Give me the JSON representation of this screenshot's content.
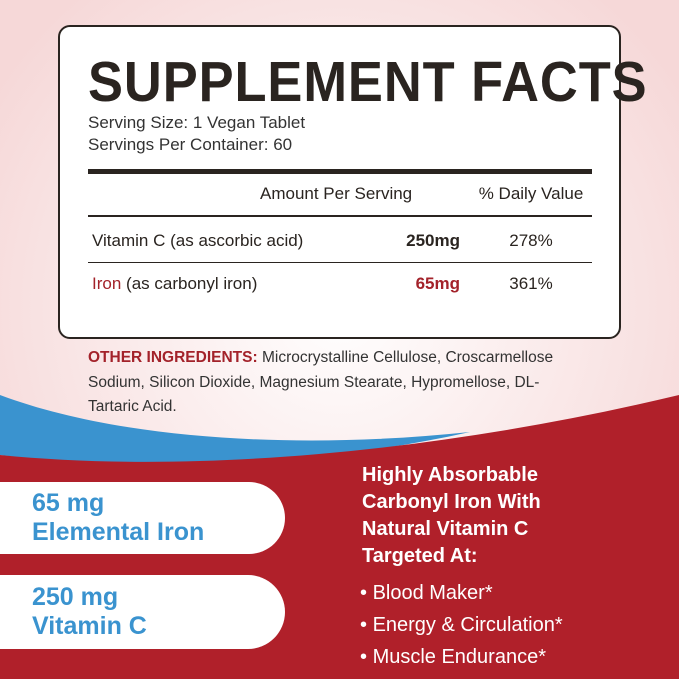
{
  "title": "SUPPLEMENT FACTS",
  "serving_size": "Serving Size: 1 Vegan Tablet",
  "servings_per_container": "Servings Per Container: 60",
  "table": {
    "headers": [
      "Amount Per Serving",
      "% Daily Value"
    ],
    "rows": [
      {
        "name": "Vitamin C",
        "note": "(as ascorbic acid)",
        "amount": "250mg",
        "dv": "278%"
      },
      {
        "name": "Iron",
        "note": "(as carbonyl iron)",
        "amount": "65mg",
        "dv": "361%"
      }
    ]
  },
  "other_ingredients": {
    "label": "OTHER INGREDIENTS:",
    "text": "Microcrystalline Cellulose, Croscarmellose Sodium, Silicon Dioxide, Magnesium Stearate, Hypromellose, DL-Tartaric Acid."
  },
  "pills": [
    {
      "line1": "65 mg",
      "line2": "Elemental Iron"
    },
    {
      "line1": "250 mg",
      "line2": "Vitamin C"
    }
  ],
  "headline": [
    "Highly Absorbable",
    "Carbonyl Iron With",
    "Natural Vitamin C",
    "Targeted At:"
  ],
  "benefits": [
    "Blood Maker*",
    "Energy & Circulation*",
    "Muscle Endurance*"
  ],
  "colors": {
    "red": "#b0202a",
    "blue": "#3a93cf",
    "dark": "#2a2420"
  }
}
